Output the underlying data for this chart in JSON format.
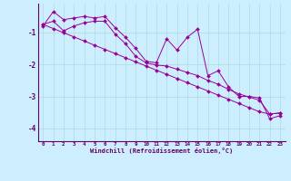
{
  "x": [
    0,
    1,
    2,
    3,
    4,
    5,
    6,
    7,
    8,
    9,
    10,
    11,
    12,
    13,
    14,
    15,
    16,
    17,
    18,
    19,
    20,
    21,
    22,
    23
  ],
  "line1_y": [
    -0.8,
    -0.35,
    -0.6,
    -0.55,
    -0.5,
    -0.55,
    -0.5,
    -0.85,
    -1.15,
    -1.5,
    -1.9,
    -1.95,
    -1.2,
    -1.55,
    -1.15,
    -0.9,
    -2.35,
    -2.2,
    -2.7,
    -3.0,
    -3.0,
    -3.05,
    -3.7,
    -3.6
  ],
  "line2_y": [
    -0.75,
    -0.65,
    -0.95,
    -0.8,
    -0.7,
    -0.65,
    -0.65,
    -1.05,
    -1.35,
    -1.75,
    -1.95,
    -2.02,
    -2.05,
    -2.15,
    -2.25,
    -2.35,
    -2.5,
    -2.62,
    -2.78,
    -2.92,
    -3.02,
    -3.12,
    -3.55,
    -3.52
  ],
  "line3_y": [
    -0.75,
    -0.88,
    -1.01,
    -1.14,
    -1.27,
    -1.4,
    -1.53,
    -1.66,
    -1.79,
    -1.92,
    -2.05,
    -2.18,
    -2.31,
    -2.44,
    -2.57,
    -2.7,
    -2.83,
    -2.96,
    -3.09,
    -3.22,
    -3.35,
    -3.48,
    -3.55,
    -3.52
  ],
  "line_color": "#990099",
  "bg_color": "#cceeff",
  "grid_color": "#aadddd",
  "axis_color": "#660066",
  "xlabel": "Windchill (Refroidissement éolien,°C)",
  "ylim": [
    -4.4,
    -0.1
  ],
  "xlim": [
    -0.5,
    23.5
  ],
  "yticks": [
    -4,
    -3,
    -2,
    -1
  ],
  "xticks": [
    0,
    1,
    2,
    3,
    4,
    5,
    6,
    7,
    8,
    9,
    10,
    11,
    12,
    13,
    14,
    15,
    16,
    17,
    18,
    19,
    20,
    21,
    22,
    23
  ]
}
